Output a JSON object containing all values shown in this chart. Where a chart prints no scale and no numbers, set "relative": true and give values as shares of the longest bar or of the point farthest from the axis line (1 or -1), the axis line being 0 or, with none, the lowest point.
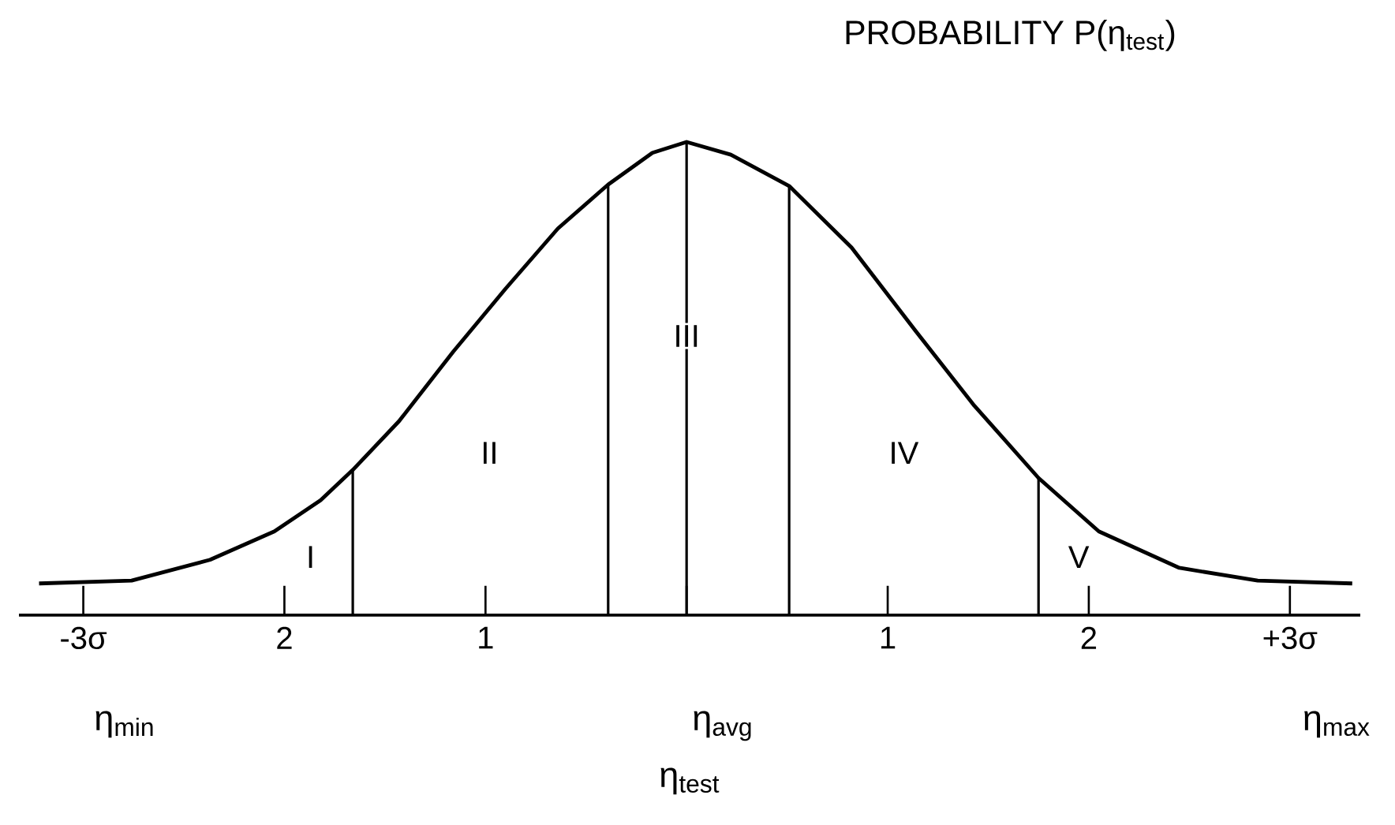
{
  "chart_data": {
    "type": "line",
    "title": "PROBABILITY P(η$_{test}$)",
    "xlabel": "η$_{test}$",
    "relative": true,
    "color": "#000000",
    "x": [
      -3.22,
      -2.76,
      -2.37,
      -2.05,
      -1.82,
      -1.66,
      -1.43,
      -1.16,
      -0.9,
      -0.64,
      -0.39,
      -0.17,
      0,
      0.22,
      0.51,
      0.82,
      1.14,
      1.43,
      1.75,
      2.05,
      2.45,
      2.84,
      3.31
    ],
    "values": [
      0.067,
      0.073,
      0.117,
      0.177,
      0.243,
      0.307,
      0.41,
      0.557,
      0.69,
      0.817,
      0.91,
      0.977,
      1.0,
      0.973,
      0.907,
      0.777,
      0.6,
      0.443,
      0.29,
      0.177,
      0.1,
      0.073,
      0.067
    ],
    "xlim": [
      -3.32,
      3.35
    ],
    "xticks": [
      {
        "value": -3,
        "label": "-3σ"
      },
      {
        "value": -2,
        "label": "2"
      },
      {
        "value": -1,
        "label": "1"
      },
      {
        "value": 0,
        "label": null
      },
      {
        "value": 1,
        "label": "1"
      },
      {
        "value": 2,
        "label": "2"
      },
      {
        "value": 3,
        "label": "+3σ"
      }
    ],
    "ref_lines": [
      {
        "axis": "x",
        "value": -1.66
      },
      {
        "axis": "x",
        "value": -0.39
      },
      {
        "axis": "x",
        "value": 0
      },
      {
        "axis": "x",
        "value": 0.51
      },
      {
        "axis": "x",
        "value": 1.75
      }
    ],
    "annotations": [
      {
        "text": "I",
        "x": -1.87,
        "y": 0.123
      },
      {
        "text": "II",
        "x": -0.98,
        "y": 0.343
      },
      {
        "text": "III",
        "x": 0,
        "y": 0.59
      },
      {
        "text": "IV",
        "x": 1.08,
        "y": 0.343
      },
      {
        "text": "V",
        "x": 1.95,
        "y": 0.123
      },
      "η$_{min}$",
      "η$_{avg}$",
      "η$_{max}$"
    ],
    "grid": false,
    "marker": "none",
    "line_style": "solid"
  }
}
